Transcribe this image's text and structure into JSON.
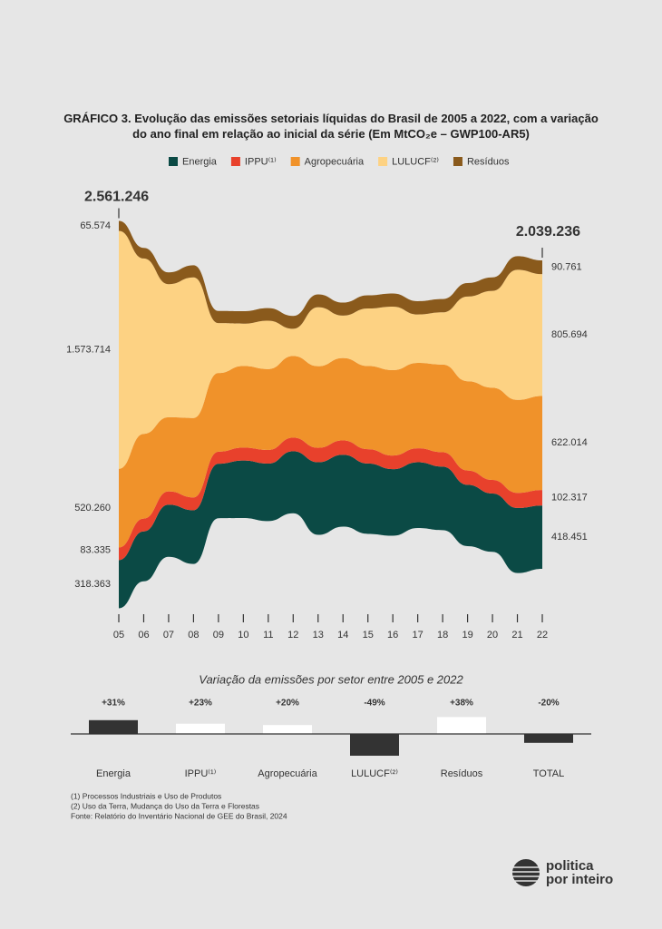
{
  "chart_data": [
    {
      "type": "streamgraph",
      "title": "GRÁFICO 3.  Evolução das emissões setoriais líquidas do Brasil de 2005 a 2022, com a variação do ano final em relação ao inicial da série (Em MtCO₂e – GWP100-AR5)",
      "offset": "silhouette",
      "categories": [
        "05",
        "06",
        "07",
        "08",
        "09",
        "10",
        "11",
        "12",
        "13",
        "14",
        "15",
        "16",
        "17",
        "18",
        "19",
        "20",
        "21",
        "22"
      ],
      "annotations": [
        "2.561.246",
        "2.039.236"
      ],
      "series": [
        {
          "name": "Energia",
          "color": "#0b4a45",
          "values": [
            318363,
            330000,
            345000,
            355000,
            360000,
            380000,
            380000,
            410000,
            480000,
            475000,
            465000,
            440000,
            435000,
            420000,
            405000,
            385000,
            430000,
            418451
          ],
          "value_labels": [
            "318.363",
            null,
            null,
            null,
            null,
            null,
            null,
            null,
            null,
            null,
            null,
            null,
            null,
            null,
            null,
            null,
            null,
            "418.451"
          ]
        },
        {
          "name": "IPPU⁽¹⁾",
          "color": "#e8412c",
          "values": [
            83335,
            85000,
            88000,
            85000,
            80000,
            85000,
            90000,
            90000,
            95000,
            95000,
            95000,
            90000,
            92000,
            95000,
            95000,
            90000,
            100000,
            102317
          ],
          "value_labels": [
            "83.335",
            null,
            null,
            null,
            null,
            null,
            null,
            null,
            null,
            null,
            null,
            null,
            null,
            null,
            null,
            null,
            null,
            "102.317"
          ]
        },
        {
          "name": "Agropecuária",
          "color": "#f0922a",
          "values": [
            520260,
            560000,
            490000,
            525000,
            520000,
            540000,
            535000,
            540000,
            540000,
            545000,
            550000,
            565000,
            565000,
            580000,
            590000,
            610000,
            615000,
            622014
          ],
          "value_labels": [
            "520.260",
            null,
            null,
            null,
            null,
            null,
            null,
            null,
            null,
            null,
            null,
            null,
            null,
            null,
            null,
            null,
            null,
            "622.014"
          ]
        },
        {
          "name": "LULUCF⁽²⁾",
          "color": "#fdd283",
          "values": [
            1573714,
            1160000,
            880000,
            930000,
            330000,
            280000,
            320000,
            180000,
            390000,
            280000,
            380000,
            420000,
            320000,
            345000,
            560000,
            640000,
            860000,
            805694
          ],
          "value_labels": [
            "1.573.714",
            null,
            null,
            null,
            null,
            null,
            null,
            null,
            null,
            null,
            null,
            null,
            null,
            null,
            null,
            null,
            null,
            "805.694"
          ]
        },
        {
          "name": "Resíduos",
          "color": "#8a5a1c",
          "values": [
            65574,
            70000,
            78000,
            80000,
            80000,
            82000,
            83000,
            85000,
            85000,
            86000,
            87000,
            87000,
            88000,
            88000,
            89000,
            89000,
            90000,
            90761
          ],
          "value_labels": [
            "65.574",
            null,
            null,
            null,
            null,
            null,
            null,
            null,
            null,
            null,
            null,
            null,
            null,
            null,
            null,
            null,
            null,
            "90.761"
          ]
        }
      ]
    },
    {
      "type": "bar",
      "title": "Variação da emissões por setor entre 2005 e 2022",
      "categories": [
        "Energia",
        "IPPU⁽¹⁾",
        "Agropecuária",
        "LULUCF⁽²⁾",
        "Resíduos",
        "TOTAL"
      ],
      "values": [
        31,
        23,
        20,
        -49,
        38,
        -20
      ],
      "value_labels": [
        "+31%",
        "+23%",
        "+20%",
        "-49%",
        "+38%",
        "-20%"
      ],
      "colors": [
        "#333333",
        "#ffffff",
        "#ffffff",
        "#333333",
        "#ffffff",
        "#333333"
      ]
    }
  ],
  "notes": [
    "(1) Processos Industriais e Uso de Produtos",
    "(2) Uso da Terra, Mudança do Uso da Terra e Florestas",
    "Fonte: Relatório do Inventário Nacional de GEE do Brasil, 2024"
  ],
  "logo": [
    "politica",
    "por inteiro"
  ]
}
